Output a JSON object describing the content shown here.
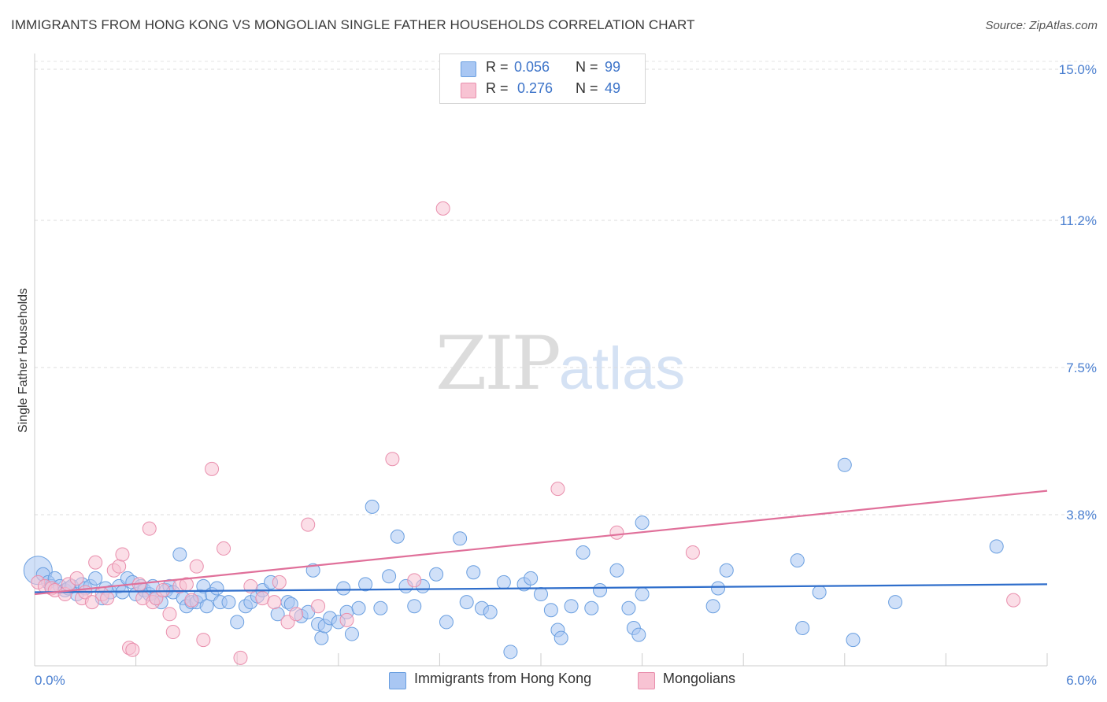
{
  "title": "IMMIGRANTS FROM HONG KONG VS MONGOLIAN SINGLE FATHER HOUSEHOLDS CORRELATION CHART",
  "source": "Source: ZipAtlas.com",
  "watermark": {
    "zip": "ZIP",
    "atlas": "atlas"
  },
  "legend": {
    "rows": [
      {
        "r_label": "R =",
        "r_value": "0.056",
        "n_label": "N =",
        "n_value": "99",
        "color": "#a9c7f3",
        "border": "#6a9fe0"
      },
      {
        "r_label": "R =",
        "r_value": "0.276",
        "n_label": "N =",
        "n_value": "49",
        "color": "#f8c3d3",
        "border": "#e98fad"
      }
    ]
  },
  "bottom_legend": [
    {
      "label": "Immigrants from Hong Kong",
      "color": "#a9c7f3",
      "border": "#6a9fe0"
    },
    {
      "label": "Mongolians",
      "color": "#f8c3d3",
      "border": "#e98fad"
    }
  ],
  "chart_data": {
    "type": "scatter",
    "title": "IMMIGRANTS FROM HONG KONG VS MONGOLIAN SINGLE FATHER HOUSEHOLDS CORRELATION CHART",
    "xlabel": "",
    "ylabel": "Single Father Households",
    "xlim": [
      0.0,
      6.0
    ],
    "ylim": [
      0.0,
      15.0
    ],
    "x_tick_labels": [
      "0.0%",
      "6.0%"
    ],
    "y_ticks": [
      3.8,
      7.5,
      11.2,
      15.0
    ],
    "y_tick_labels": [
      "3.8%",
      "7.5%",
      "11.2%",
      "15.0%"
    ],
    "grid": "horizontal dashed",
    "legend_placement": "top-center",
    "series": [
      {
        "name": "Immigrants from Hong Kong",
        "color": "#6a9fe0",
        "fill": "#a9c7f3",
        "trend": {
          "x": [
            0.0,
            6.0
          ],
          "y": [
            1.85,
            2.05
          ],
          "color": "#2f6ecb"
        },
        "points": [
          [
            0.02,
            2.4
          ],
          [
            0.05,
            2.3
          ],
          [
            0.08,
            2.1
          ],
          [
            0.1,
            2.0
          ],
          [
            0.12,
            2.2
          ],
          [
            0.15,
            2.0
          ],
          [
            0.18,
            1.9
          ],
          [
            0.2,
            1.95
          ],
          [
            0.22,
            2.0
          ],
          [
            0.25,
            1.8
          ],
          [
            0.28,
            2.05
          ],
          [
            0.3,
            1.95
          ],
          [
            0.33,
            2.0
          ],
          [
            0.36,
            2.2
          ],
          [
            0.4,
            1.7
          ],
          [
            0.42,
            1.95
          ],
          [
            0.45,
            1.85
          ],
          [
            0.5,
            2.0
          ],
          [
            0.52,
            1.85
          ],
          [
            0.55,
            2.2
          ],
          [
            0.58,
            2.1
          ],
          [
            0.6,
            1.8
          ],
          [
            0.63,
            2.0
          ],
          [
            0.65,
            1.9
          ],
          [
            0.68,
            1.8
          ],
          [
            0.7,
            2.0
          ],
          [
            0.72,
            1.7
          ],
          [
            0.75,
            1.6
          ],
          [
            0.78,
            1.9
          ],
          [
            0.8,
            2.0
          ],
          [
            0.82,
            1.85
          ],
          [
            0.86,
            2.8
          ],
          [
            0.88,
            1.7
          ],
          [
            0.9,
            1.5
          ],
          [
            0.93,
            1.6
          ],
          [
            0.96,
            1.6
          ],
          [
            0.98,
            1.75
          ],
          [
            1.0,
            2.0
          ],
          [
            1.02,
            1.5
          ],
          [
            1.05,
            1.8
          ],
          [
            1.08,
            1.95
          ],
          [
            1.1,
            1.6
          ],
          [
            1.15,
            1.6
          ],
          [
            1.2,
            1.1
          ],
          [
            1.25,
            1.5
          ],
          [
            1.28,
            1.6
          ],
          [
            1.32,
            1.75
          ],
          [
            1.35,
            1.9
          ],
          [
            1.4,
            2.1
          ],
          [
            1.44,
            1.3
          ],
          [
            1.5,
            1.6
          ],
          [
            1.52,
            1.55
          ],
          [
            1.58,
            1.25
          ],
          [
            1.62,
            1.35
          ],
          [
            1.65,
            2.4
          ],
          [
            1.68,
            1.05
          ],
          [
            1.7,
            0.7
          ],
          [
            1.72,
            1.0
          ],
          [
            1.75,
            1.2
          ],
          [
            1.8,
            1.1
          ],
          [
            1.83,
            1.95
          ],
          [
            1.85,
            1.35
          ],
          [
            1.88,
            0.8
          ],
          [
            1.92,
            1.45
          ],
          [
            1.96,
            2.05
          ],
          [
            2.0,
            4.0
          ],
          [
            2.05,
            1.45
          ],
          [
            2.1,
            2.25
          ],
          [
            2.15,
            3.25
          ],
          [
            2.2,
            2.0
          ],
          [
            2.25,
            1.5
          ],
          [
            2.3,
            2.0
          ],
          [
            2.38,
            2.3
          ],
          [
            2.44,
            1.1
          ],
          [
            2.52,
            3.2
          ],
          [
            2.56,
            1.6
          ],
          [
            2.6,
            2.35
          ],
          [
            2.65,
            1.45
          ],
          [
            2.7,
            1.35
          ],
          [
            2.78,
            2.1
          ],
          [
            2.82,
            0.35
          ],
          [
            2.9,
            2.05
          ],
          [
            2.94,
            2.2
          ],
          [
            3.0,
            1.8
          ],
          [
            3.06,
            1.4
          ],
          [
            3.1,
            0.9
          ],
          [
            3.12,
            0.7
          ],
          [
            3.18,
            1.5
          ],
          [
            3.25,
            2.85
          ],
          [
            3.3,
            1.45
          ],
          [
            3.35,
            1.9
          ],
          [
            3.45,
            2.4
          ],
          [
            3.52,
            1.45
          ],
          [
            3.55,
            0.95
          ],
          [
            3.58,
            0.78
          ],
          [
            3.6,
            1.8
          ],
          [
            3.6,
            3.6
          ],
          [
            4.02,
            1.5
          ],
          [
            4.05,
            1.95
          ],
          [
            4.1,
            2.4
          ],
          [
            4.52,
            2.65
          ],
          [
            4.55,
            0.95
          ],
          [
            4.65,
            1.85
          ],
          [
            4.8,
            5.05
          ],
          [
            4.85,
            0.65
          ],
          [
            5.1,
            1.6
          ],
          [
            5.7,
            3.0
          ]
        ]
      },
      {
        "name": "Mongolians",
        "color": "#e98fad",
        "fill": "#f8c3d3",
        "trend": {
          "x": [
            0.0,
            6.0
          ],
          "y": [
            1.8,
            4.4
          ],
          "color": "#e0709a"
        },
        "points": [
          [
            0.02,
            2.1
          ],
          [
            0.06,
            2.0
          ],
          [
            0.1,
            1.95
          ],
          [
            0.12,
            1.9
          ],
          [
            0.18,
            1.8
          ],
          [
            0.2,
            2.05
          ],
          [
            0.25,
            2.2
          ],
          [
            0.28,
            1.7
          ],
          [
            0.3,
            1.85
          ],
          [
            0.34,
            1.6
          ],
          [
            0.36,
            2.6
          ],
          [
            0.4,
            1.8
          ],
          [
            0.43,
            1.7
          ],
          [
            0.47,
            2.4
          ],
          [
            0.5,
            2.5
          ],
          [
            0.52,
            2.8
          ],
          [
            0.56,
            0.45
          ],
          [
            0.58,
            0.4
          ],
          [
            0.62,
            2.05
          ],
          [
            0.64,
            1.7
          ],
          [
            0.68,
            3.45
          ],
          [
            0.7,
            1.6
          ],
          [
            0.72,
            1.7
          ],
          [
            0.76,
            1.9
          ],
          [
            0.8,
            1.3
          ],
          [
            0.82,
            0.85
          ],
          [
            0.86,
            2.0
          ],
          [
            0.9,
            2.05
          ],
          [
            0.93,
            1.65
          ],
          [
            0.96,
            2.5
          ],
          [
            1.0,
            0.65
          ],
          [
            1.05,
            4.95
          ],
          [
            1.12,
            2.95
          ],
          [
            1.22,
            0.2
          ],
          [
            1.28,
            2.0
          ],
          [
            1.35,
            1.7
          ],
          [
            1.42,
            1.6
          ],
          [
            1.45,
            2.1
          ],
          [
            1.5,
            1.1
          ],
          [
            1.55,
            1.3
          ],
          [
            1.62,
            3.55
          ],
          [
            1.68,
            1.5
          ],
          [
            1.85,
            1.15
          ],
          [
            2.12,
            5.2
          ],
          [
            2.25,
            2.15
          ],
          [
            2.42,
            11.5
          ],
          [
            3.1,
            4.45
          ],
          [
            3.45,
            3.35
          ],
          [
            3.9,
            2.85
          ],
          [
            5.8,
            1.65
          ]
        ]
      }
    ]
  }
}
